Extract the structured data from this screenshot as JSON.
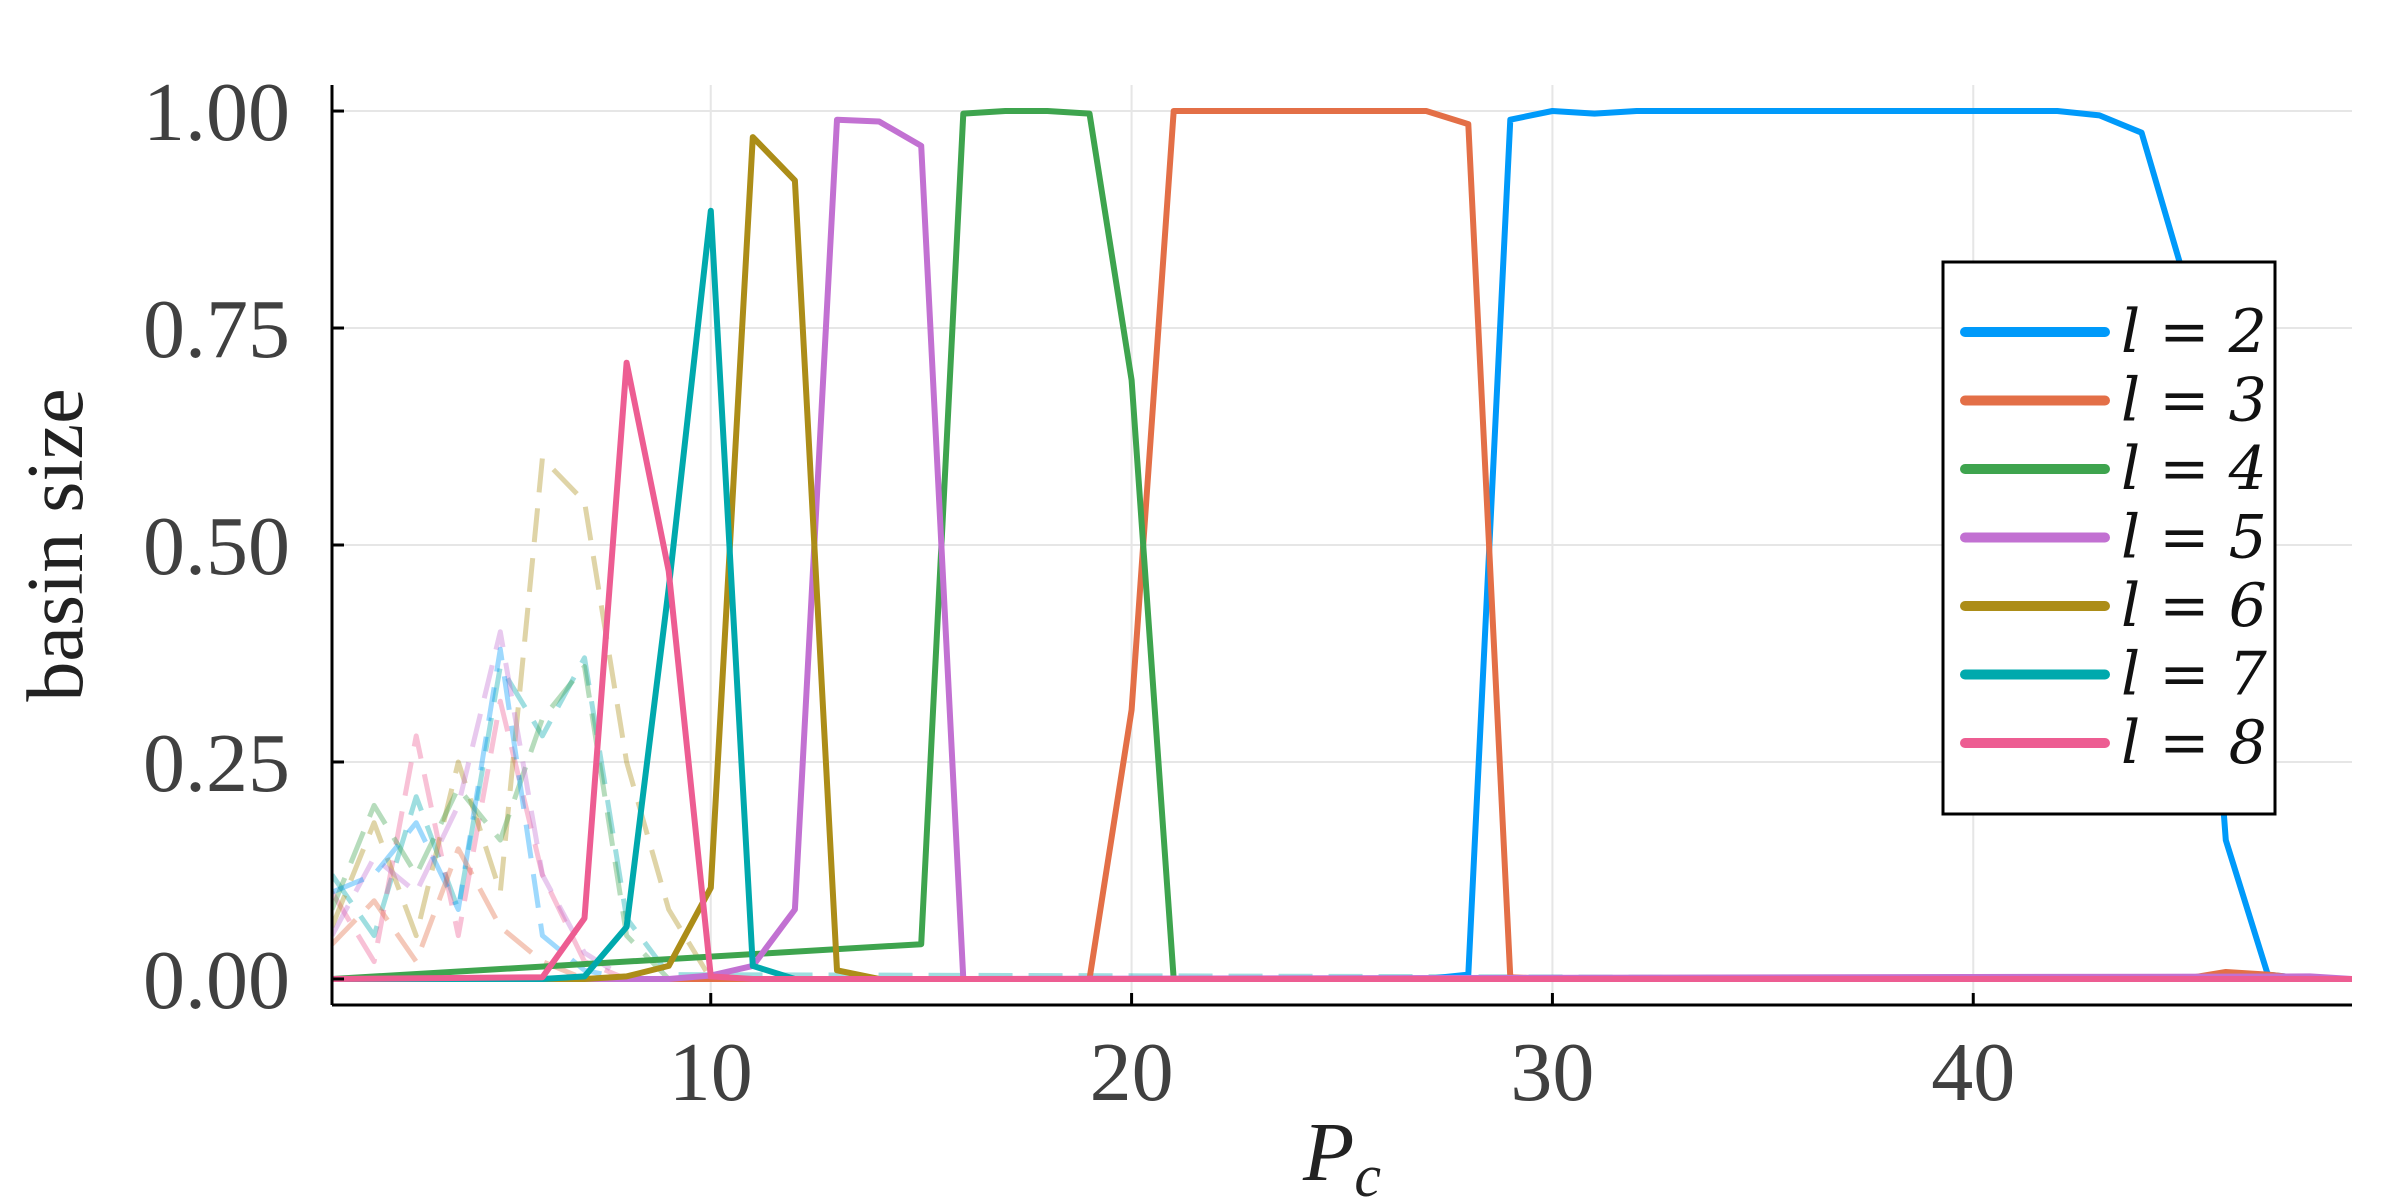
{
  "chart_data": {
    "type": "line",
    "xlabel": "P_c",
    "ylabel": "basin size",
    "xlim": [
      1,
      49
    ],
    "ylim": [
      -0.03,
      1.03
    ],
    "xticks": [
      10,
      20,
      30,
      40
    ],
    "xtick_labels": [
      "10",
      "20",
      "30",
      "40"
    ],
    "yticks": [
      0,
      0.25,
      0.5,
      0.75,
      1.0
    ],
    "ytick_labels": [
      "0.00",
      "0.25",
      "0.50",
      "0.75",
      "1.00"
    ],
    "grid": true,
    "legend_position": "right",
    "series": [
      {
        "name": "l = 2",
        "color": "#009AFA",
        "style": "solid",
        "points": [
          [
            1,
            0
          ],
          [
            27,
            0
          ],
          [
            28,
            0.005
          ],
          [
            29,
            0.99
          ],
          [
            30,
            1.0
          ],
          [
            31,
            0.997
          ],
          [
            32,
            1.0
          ],
          [
            40,
            1.0
          ],
          [
            42,
            1.0
          ],
          [
            43,
            0.995
          ],
          [
            44,
            0.975
          ],
          [
            45,
            0.81
          ],
          [
            46,
            0.16
          ],
          [
            47,
            0.005
          ],
          [
            48,
            0
          ],
          [
            49,
            0
          ]
        ]
      },
      {
        "name": "l = 3",
        "color": "#E36F47",
        "style": "solid",
        "points": [
          [
            1,
            0
          ],
          [
            19,
            0
          ],
          [
            20,
            0.31
          ],
          [
            21,
            1.0
          ],
          [
            27,
            1.0
          ],
          [
            28,
            0.985
          ],
          [
            29,
            0.002
          ],
          [
            30,
            0
          ],
          [
            45,
            0
          ],
          [
            46,
            0.008
          ],
          [
            47,
            0.005
          ],
          [
            48,
            0
          ],
          [
            49,
            0
          ]
        ]
      },
      {
        "name": "l = 4",
        "color": "#3EA44E",
        "style": "solid",
        "points": [
          [
            1,
            0
          ],
          [
            15,
            0.04
          ],
          [
            16,
            0.997
          ],
          [
            17,
            1.0
          ],
          [
            18,
            1.0
          ],
          [
            19,
            0.997
          ],
          [
            20,
            0.69
          ],
          [
            21,
            0
          ],
          [
            49,
            0
          ]
        ]
      },
      {
        "name": "l = 5",
        "color": "#C271D2",
        "style": "solid",
        "points": [
          [
            1,
            0
          ],
          [
            9,
            0
          ],
          [
            10,
            0.004
          ],
          [
            11,
            0.015
          ],
          [
            12,
            0.08
          ],
          [
            13,
            0.99
          ],
          [
            14,
            0.988
          ],
          [
            15,
            0.96
          ],
          [
            16,
            0
          ],
          [
            48,
            0.003
          ],
          [
            49,
            0
          ]
        ]
      },
      {
        "name": "l = 6",
        "color": "#AC8D18",
        "style": "solid",
        "points": [
          [
            1,
            0
          ],
          [
            7,
            0
          ],
          [
            8,
            0.003
          ],
          [
            9,
            0.015
          ],
          [
            10,
            0.105
          ],
          [
            11,
            0.97
          ],
          [
            12,
            0.92
          ],
          [
            13,
            0.01
          ],
          [
            14,
            0
          ],
          [
            49,
            0
          ]
        ]
      },
      {
        "name": "l = 7",
        "color": "#00A9AD",
        "style": "solid",
        "points": [
          [
            1,
            0
          ],
          [
            6,
            0
          ],
          [
            7,
            0.003
          ],
          [
            8,
            0.06
          ],
          [
            9,
            0.45
          ],
          [
            10,
            0.885
          ],
          [
            11,
            0.015
          ],
          [
            12,
            0
          ],
          [
            49,
            0
          ]
        ]
      },
      {
        "name": "l = 8",
        "color": "#ED5D92",
        "style": "solid",
        "points": [
          [
            1,
            0
          ],
          [
            6,
            0.002
          ],
          [
            7,
            0.07
          ],
          [
            8,
            0.71
          ],
          [
            9,
            0.47
          ],
          [
            10,
            0.003
          ],
          [
            11,
            0
          ],
          [
            49,
            0
          ]
        ]
      }
    ],
    "faded_dashed_series": [
      {
        "color": "#00A9AD",
        "points": [
          [
            1,
            0.12
          ],
          [
            2,
            0.05
          ],
          [
            3,
            0.21
          ],
          [
            4,
            0.08
          ],
          [
            5,
            0.36
          ],
          [
            6,
            0.28
          ],
          [
            7,
            0.37
          ],
          [
            8,
            0.07
          ],
          [
            9,
            0.005
          ],
          [
            49,
            0
          ]
        ]
      },
      {
        "color": "#ED5D92",
        "points": [
          [
            1,
            0.1
          ],
          [
            2,
            0.02
          ],
          [
            3,
            0.28
          ],
          [
            4,
            0.05
          ],
          [
            5,
            0.32
          ],
          [
            6,
            0.12
          ],
          [
            7,
            0.02
          ],
          [
            8,
            0
          ],
          [
            49,
            0
          ]
        ]
      },
      {
        "color": "#AC8D18",
        "points": [
          [
            1,
            0.06
          ],
          [
            2,
            0.18
          ],
          [
            3,
            0.05
          ],
          [
            4,
            0.25
          ],
          [
            5,
            0.1
          ],
          [
            6,
            0.6
          ],
          [
            7,
            0.55
          ],
          [
            8,
            0.25
          ],
          [
            9,
            0.08
          ],
          [
            10,
            0
          ],
          [
            49,
            0
          ]
        ]
      },
      {
        "color": "#3EA44E",
        "points": [
          [
            1,
            0.08
          ],
          [
            2,
            0.2
          ],
          [
            3,
            0.12
          ],
          [
            4,
            0.22
          ],
          [
            5,
            0.16
          ],
          [
            6,
            0.3
          ],
          [
            7,
            0.36
          ],
          [
            8,
            0.05
          ],
          [
            9,
            0
          ],
          [
            49,
            0
          ]
        ]
      },
      {
        "color": "#C271D2",
        "points": [
          [
            1,
            0.05
          ],
          [
            2,
            0.14
          ],
          [
            3,
            0.1
          ],
          [
            4,
            0.2
          ],
          [
            5,
            0.4
          ],
          [
            6,
            0.12
          ],
          [
            7,
            0.03
          ],
          [
            8,
            0
          ],
          [
            49,
            0
          ]
        ]
      },
      {
        "color": "#009AFA",
        "points": [
          [
            1,
            0.1
          ],
          [
            2,
            0.12
          ],
          [
            3,
            0.18
          ],
          [
            4,
            0.08
          ],
          [
            5,
            0.38
          ],
          [
            6,
            0.05
          ],
          [
            7,
            0.01
          ],
          [
            8,
            0
          ],
          [
            49,
            0
          ]
        ]
      },
      {
        "color": "#E36F47",
        "points": [
          [
            1,
            0.04
          ],
          [
            2,
            0.09
          ],
          [
            3,
            0.02
          ],
          [
            4,
            0.15
          ],
          [
            5,
            0.06
          ],
          [
            6,
            0.02
          ],
          [
            7,
            0
          ],
          [
            49,
            0
          ]
        ]
      }
    ]
  }
}
